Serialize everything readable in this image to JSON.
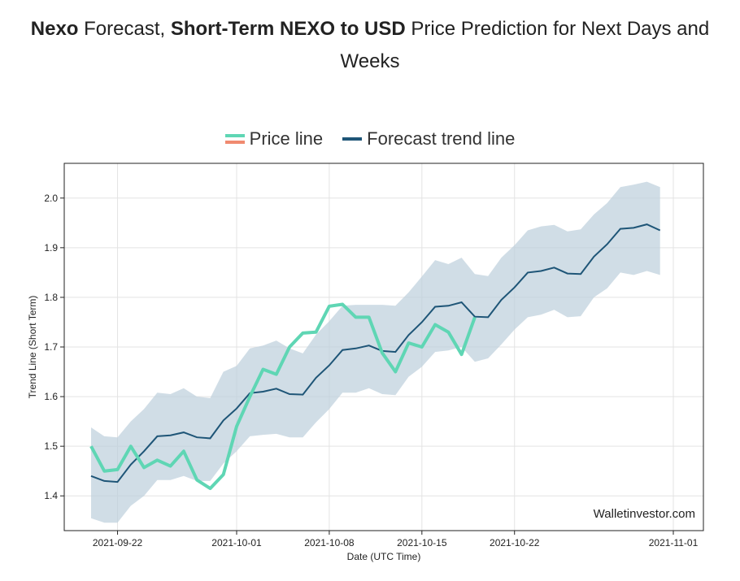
{
  "header": {
    "brand": "Nexo",
    "t1": " Forecast, ",
    "bold2": "Short-Term NEXO to USD",
    "t2": " Price Prediction for Next Days and Weeks"
  },
  "legend": {
    "price_label": "Price line",
    "forecast_label": "Forecast trend line",
    "price_color": "#5fd6b4",
    "price_color_alt": "#f08a70",
    "forecast_color": "#1e5577"
  },
  "watermark": "Walletinvestor.com",
  "chart_data": {
    "type": "line",
    "title": "",
    "xlabel": "Date (UTC Time)",
    "ylabel": "Trend Line (Short Term)",
    "x_start": "2021-09-20",
    "xlim": [
      0,
      44
    ],
    "ylim": [
      1.33,
      2.07
    ],
    "yticks": [
      1.4,
      1.5,
      1.6,
      1.7,
      1.8,
      1.9,
      2.0
    ],
    "ytick_labels": [
      "1.4",
      "1.5",
      "1.6",
      "1.7",
      "1.8",
      "1.9",
      "2.0"
    ],
    "xticks": [
      2,
      11,
      18,
      25,
      32,
      44
    ],
    "xtick_labels": [
      "2021-09-22",
      "2021-10-01",
      "2021-10-08",
      "2021-10-15",
      "2021-10-22",
      "2021-11-01"
    ],
    "xtick_pos": [
      2,
      11,
      18,
      25,
      32,
      44
    ],
    "series": [
      {
        "name": "Price line",
        "x_start": 0,
        "values": [
          1.5,
          1.45,
          1.453,
          1.5,
          1.457,
          1.472,
          1.46,
          1.49,
          1.432,
          1.415,
          1.443,
          1.54,
          1.6,
          1.655,
          1.645,
          1.7,
          1.728,
          1.73,
          1.782,
          1.786,
          1.76,
          1.76,
          1.688,
          1.65,
          1.708,
          1.7,
          1.745,
          1.73,
          1.685,
          1.76
        ]
      },
      {
        "name": "Forecast trend line",
        "x_start": 0,
        "values": [
          1.44,
          1.43,
          1.428,
          1.463,
          1.49,
          1.52,
          1.522,
          1.528,
          1.518,
          1.516,
          1.552,
          1.576,
          1.607,
          1.61,
          1.616,
          1.605,
          1.604,
          1.638,
          1.663,
          1.694,
          1.697,
          1.703,
          1.692,
          1.69,
          1.724,
          1.75,
          1.781,
          1.783,
          1.79,
          1.761,
          1.76,
          1.795,
          1.82,
          1.85,
          1.853,
          1.86,
          1.848,
          1.847,
          1.882,
          1.907,
          1.938,
          1.94,
          1.947,
          1.935
        ]
      },
      {
        "name": "Upper band",
        "x_start": 0,
        "values": [
          1.538,
          1.52,
          1.518,
          1.55,
          1.575,
          1.608,
          1.605,
          1.617,
          1.6,
          1.597,
          1.65,
          1.662,
          1.697,
          1.703,
          1.713,
          1.697,
          1.687,
          1.725,
          1.752,
          1.783,
          1.785,
          1.785,
          1.785,
          1.783,
          1.81,
          1.842,
          1.875,
          1.867,
          1.88,
          1.847,
          1.843,
          1.88,
          1.905,
          1.935,
          1.943,
          1.946,
          1.933,
          1.937,
          1.967,
          1.99,
          2.022,
          2.027,
          2.033,
          2.022
        ]
      },
      {
        "name": "Lower band",
        "x_start": 0,
        "values": [
          1.355,
          1.346,
          1.346,
          1.38,
          1.4,
          1.432,
          1.432,
          1.44,
          1.43,
          1.43,
          1.465,
          1.49,
          1.52,
          1.523,
          1.525,
          1.518,
          1.518,
          1.548,
          1.575,
          1.608,
          1.608,
          1.617,
          1.605,
          1.603,
          1.64,
          1.66,
          1.69,
          1.693,
          1.7,
          1.67,
          1.677,
          1.705,
          1.735,
          1.76,
          1.765,
          1.775,
          1.76,
          1.762,
          1.8,
          1.818,
          1.85,
          1.845,
          1.853,
          1.845
        ]
      }
    ]
  }
}
